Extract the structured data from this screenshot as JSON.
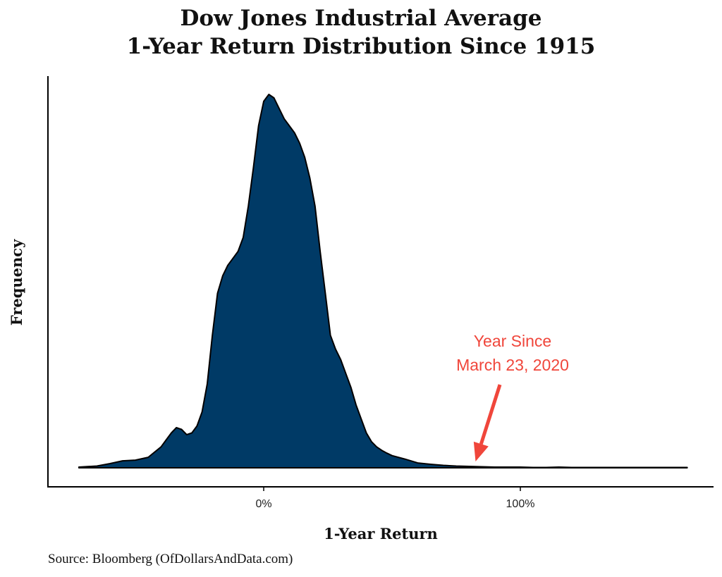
{
  "chart_data": {
    "type": "area",
    "title_lines": [
      "Dow Jones Industrial Average",
      "1-Year Return Distribution Since 1915"
    ],
    "xlabel": "1-Year Return",
    "ylabel": "Frequency",
    "xticks": [
      {
        "value": 0,
        "label": "0%"
      },
      {
        "value": 100,
        "label": "100%"
      }
    ],
    "xlim": [
      -85,
      175
    ],
    "ylim": [
      0,
      1.08
    ],
    "grid": false,
    "series": [
      {
        "color": "#003a66",
        "x": [
          -72,
          -65,
          -60,
          -55,
          -50,
          -45,
          -40,
          -38,
          -36,
          -34,
          -32,
          -30,
          -28,
          -26,
          -24,
          -22,
          -20,
          -18,
          -16,
          -14,
          -12,
          -10,
          -8,
          -6,
          -4,
          -2,
          0,
          2,
          4,
          6,
          8,
          10,
          12,
          14,
          16,
          18,
          20,
          22,
          24,
          26,
          28,
          30,
          32,
          34,
          36,
          38,
          40,
          42,
          44,
          46,
          48,
          50,
          55,
          60,
          65,
          70,
          75,
          80,
          85,
          90,
          95,
          100,
          105,
          110,
          115,
          120,
          125,
          130,
          135,
          140,
          145,
          150,
          155,
          160,
          165
        ],
        "y": [
          0.002,
          0.005,
          0.012,
          0.02,
          0.022,
          0.03,
          0.06,
          0.08,
          0.1,
          0.115,
          0.11,
          0.095,
          0.1,
          0.12,
          0.16,
          0.24,
          0.38,
          0.5,
          0.55,
          0.58,
          0.6,
          0.62,
          0.66,
          0.75,
          0.86,
          0.98,
          1.05,
          1.07,
          1.06,
          1.03,
          1.0,
          0.98,
          0.96,
          0.93,
          0.89,
          0.83,
          0.75,
          0.62,
          0.5,
          0.38,
          0.34,
          0.31,
          0.27,
          0.23,
          0.18,
          0.14,
          0.1,
          0.075,
          0.06,
          0.05,
          0.042,
          0.035,
          0.025,
          0.014,
          0.01,
          0.007,
          0.005,
          0.004,
          0.003,
          0.002,
          0.002,
          0.002,
          0.001,
          0.001,
          0.002,
          0.001,
          0.001,
          0.001,
          0.001,
          0.001,
          0.001,
          0.001,
          0.001,
          0.001,
          0.001
        ]
      }
    ],
    "annotation": {
      "lines": [
        "Year Since",
        "March 23, 2020"
      ],
      "target_x": 82,
      "color": "#f0463b"
    },
    "source": "Source:  Bloomberg (OfDollarsAndData.com)"
  }
}
